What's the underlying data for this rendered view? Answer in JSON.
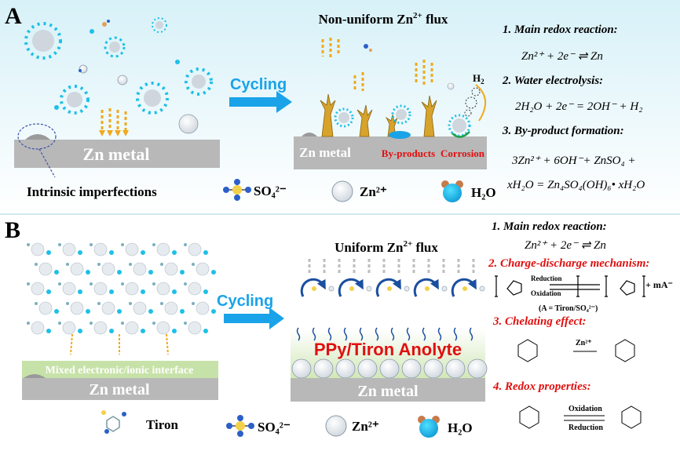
{
  "panel_a": {
    "letter": "A",
    "title": "Non-uniform Zn",
    "title_sup": "2+",
    "title_suffix": " flux",
    "arrow_label": "Cycling",
    "metal_left": "Zn metal",
    "metal_right": "Zn metal",
    "byproducts": "By-products",
    "corrosion": "Corrosion",
    "h2": "H",
    "h2_sub": "2",
    "imperfections": "Intrinsic imperfections",
    "eq1_title": "1. Main redox reaction:",
    "eq1": "Zn²⁺ + 2e⁻ ⇌ Zn",
    "eq2_title": "2. Water electrolysis:",
    "eq2": "2H₂O + 2e⁻ = 2OH⁻ + H₂",
    "eq3_title": "3. By-product formation:",
    "eq3a": "3Zn²⁺ + 6OH⁻+ ZnSO₄ +",
    "eq3b": "xH₂O = Zn₄SO₄(OH)₆• xH₂O"
  },
  "panel_b": {
    "letter": "B",
    "title": "Uniform Zn",
    "title_sup": "2+",
    "title_suffix": " flux",
    "arrow_label": "Cycling",
    "interface": "Mixed electronic/ionic interface",
    "metal_left": "Zn metal",
    "metal_right": "Zn metal",
    "anolyte": "PPy/Tiron Anolyte",
    "eq1_title": "1. Main redox reaction:",
    "eq1": "Zn²⁺ + 2e⁻ ⇌ Zn",
    "eq2_title": "2. Charge-discharge mechanism:",
    "reduction": "Reduction",
    "oxidation": "Oxidation",
    "ppy_note": "(A = Tiron/SO₄²⁻)",
    "ma": "+ mA⁻",
    "eq3_title": "3. Chelating effect:",
    "zn2": "Zn²⁺",
    "eq4_title": "4. Redox properties:",
    "oxidation2": "Oxidation",
    "reduction2": "Reduction"
  },
  "legend_a": {
    "so4": "SO₄²⁻",
    "zn": "Zn²⁺",
    "h2o": "H₂O"
  },
  "legend_b": {
    "tiron": "Tiron",
    "so4": "SO₄²⁻",
    "zn": "Zn²⁺",
    "h2o": "H₂O"
  },
  "colors": {
    "bg_top": "#d6f0f7",
    "metal": "#b9b9b9",
    "anolyte": "#c7e2a8",
    "red": "#e01010",
    "blue_arrow": "#1aa3e8",
    "ion": "#1ec0e6",
    "dendrite": "#d7a32b"
  }
}
